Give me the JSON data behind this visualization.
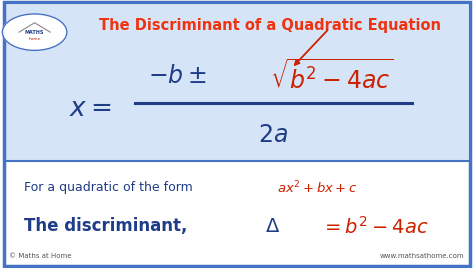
{
  "title": "The Discriminant of a Quadratic Equation",
  "title_color": "#EE3311",
  "bg_color": "#FFFFFF",
  "border_color": "#4472C4",
  "top_bg_color": "#D6E4F7",
  "bottom_bg_color": "#FFFFFF",
  "blue_color": "#1F3C88",
  "orange_color": "#CC2200",
  "copyright": "© Maths at Home",
  "website": "www.mathsathome.com"
}
